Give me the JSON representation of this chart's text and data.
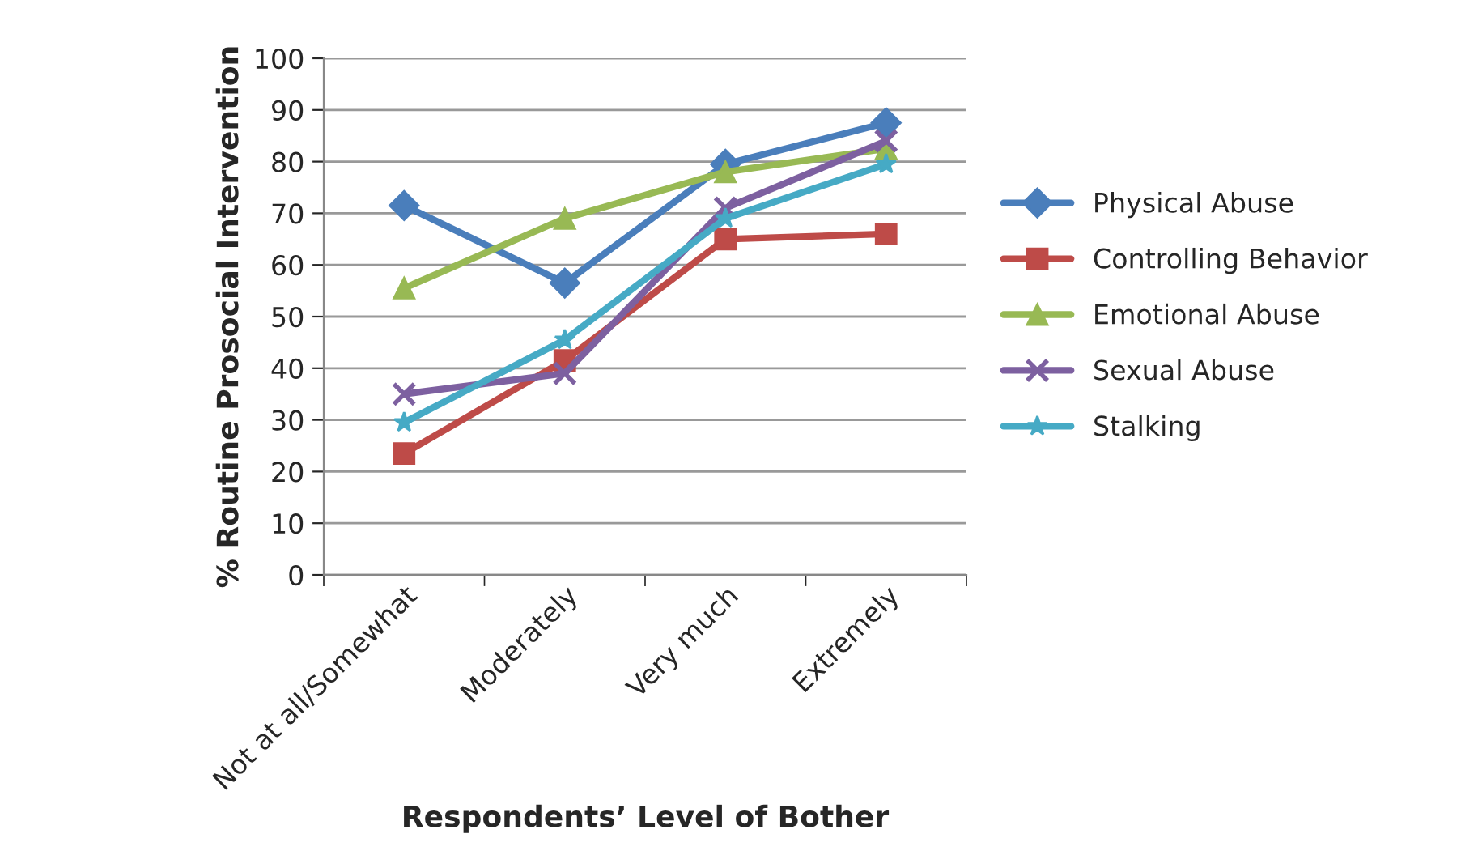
{
  "chart_data": {
    "type": "line",
    "xlabel": "Respondents’ Level of Bother",
    "ylabel": "% Routine Prosocial Intervention",
    "categories": [
      "Not at all/Somewhat",
      "Moderately",
      "Very much",
      "Extremely"
    ],
    "series": [
      {
        "name": "Physical Abuse",
        "color": "#4a7ebb",
        "marker": "diamond",
        "values": [
          71.5,
          56.5,
          79.5,
          87.5
        ]
      },
      {
        "name": "Controlling Behavior",
        "color": "#be4b48",
        "marker": "square",
        "values": [
          23.5,
          41.5,
          65,
          66
        ]
      },
      {
        "name": "Emotional Abuse",
        "color": "#98b954",
        "marker": "triangle",
        "values": [
          55.5,
          69,
          78,
          82.5
        ]
      },
      {
        "name": "Sexual Abuse",
        "color": "#7d60a0",
        "marker": "cross",
        "values": [
          35,
          39,
          71,
          84
        ]
      },
      {
        "name": "Stalking",
        "color": "#46aac5",
        "marker": "star",
        "values": [
          29.5,
          45.5,
          69,
          79.5
        ]
      }
    ],
    "ylim": [
      0,
      100
    ],
    "yticks": [
      0,
      10,
      20,
      30,
      40,
      50,
      60,
      70,
      80,
      90,
      100
    ],
    "grid": "y",
    "legend": "right",
    "line_style": "solid"
  }
}
